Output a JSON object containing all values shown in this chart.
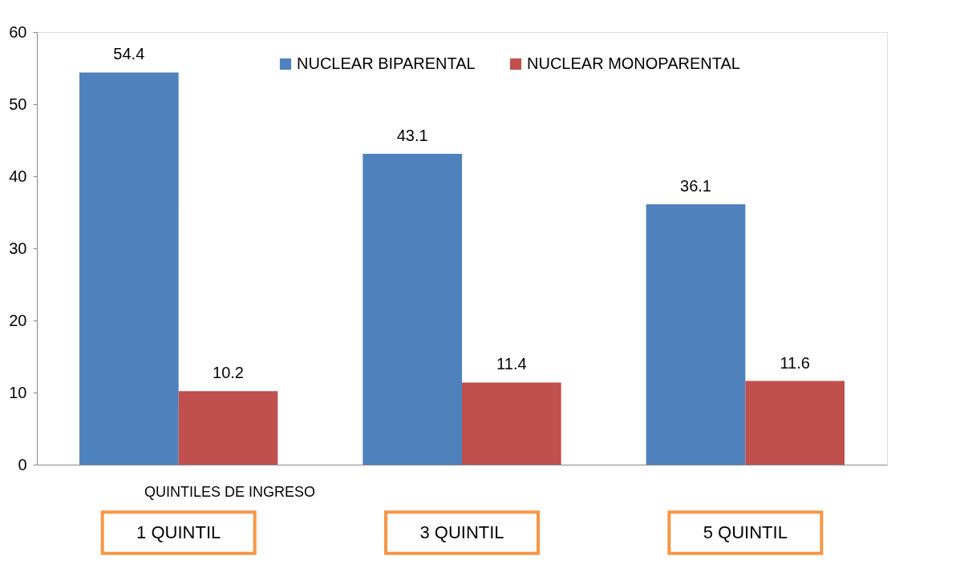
{
  "chart_data": {
    "type": "bar",
    "xlabel": "QUINTILES DE INGRESO",
    "categories": [
      "1 QUINTIL",
      "3 QUINTIL",
      "5 QUINTIL"
    ],
    "series": [
      {
        "name": "NUCLEAR BIPARENTAL",
        "color": "#4f81bd",
        "values": [
          54.4,
          43.1,
          36.1
        ]
      },
      {
        "name": "NUCLEAR MONOPARENTAL",
        "color": "#c0504d",
        "values": [
          10.2,
          11.4,
          11.6
        ]
      }
    ],
    "ylim": [
      0,
      60
    ],
    "yticks": [
      0,
      10,
      20,
      30,
      40,
      50,
      60
    ],
    "grid": false,
    "legend": "top",
    "data_labels": true
  }
}
